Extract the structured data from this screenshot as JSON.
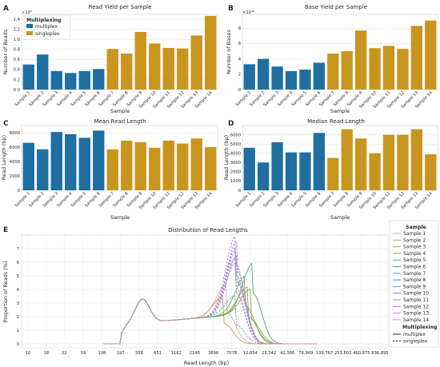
{
  "colors": {
    "multiplex": "#1f6fa3",
    "singleplex": "#c8961f"
  },
  "legend_multiplexing": {
    "title": "Multiplexing",
    "items": [
      "multiplex",
      "singleplex"
    ]
  },
  "chart_data": [
    {
      "panel": "A",
      "type": "bar",
      "title": "Read Yield per Sample",
      "xlabel": "Sample",
      "ylabel": "Number of Reads",
      "exponent": "×10⁷",
      "ylim": [
        0,
        1.5
      ],
      "yticks": [
        0.0,
        0.2,
        0.4,
        0.6,
        0.8,
        1.0,
        1.2,
        1.4
      ],
      "categories": [
        "Sample 1",
        "Sample 2",
        "Sample 3",
        "Sample 4",
        "Sample 5",
        "Sample 6",
        "Sample 7",
        "Sample 8",
        "Sample 9",
        "Sample 10",
        "Sample 11",
        "Sample 12",
        "Sample 13",
        "Sample 14"
      ],
      "values": [
        0.5,
        0.7,
        0.37,
        0.33,
        0.37,
        0.41,
        0.81,
        0.72,
        1.15,
        0.92,
        0.83,
        0.82,
        1.08,
        1.47
      ],
      "groups": [
        "multiplex",
        "multiplex",
        "multiplex",
        "multiplex",
        "multiplex",
        "multiplex",
        "singleplex",
        "singleplex",
        "singleplex",
        "singleplex",
        "singleplex",
        "singleplex",
        "singleplex",
        "singleplex"
      ],
      "legend": "top-left"
    },
    {
      "panel": "B",
      "type": "bar",
      "title": "Base Yield per Sample",
      "xlabel": "Sample",
      "ylabel": "Number of Bases",
      "exponent": "×10¹⁰",
      "ylim": [
        0,
        9.8
      ],
      "yticks": [
        0,
        2,
        4,
        6,
        8
      ],
      "categories": [
        "Sample 1",
        "Sample 2",
        "Sample 3",
        "Sample 4",
        "Sample 5",
        "Sample 6",
        "Sample 7",
        "Sample 8",
        "Sample 9",
        "Sample 10",
        "Sample 11",
        "Sample 12",
        "Sample 13",
        "Sample 14"
      ],
      "values": [
        3.3,
        4.0,
        3.0,
        2.4,
        2.6,
        3.5,
        4.7,
        5.0,
        7.7,
        5.4,
        5.7,
        5.3,
        8.3,
        9.0
      ],
      "groups": [
        "multiplex",
        "multiplex",
        "multiplex",
        "multiplex",
        "multiplex",
        "multiplex",
        "singleplex",
        "singleplex",
        "singleplex",
        "singleplex",
        "singleplex",
        "singleplex",
        "singleplex",
        "singleplex"
      ]
    },
    {
      "panel": "C",
      "type": "bar",
      "title": "Mean Read Length",
      "xlabel": "Sample",
      "ylabel": "Read Length (bp)",
      "ylim": [
        0,
        9000
      ],
      "yticks": [
        0,
        2000,
        4000,
        6000,
        8000
      ],
      "categories": [
        "Sample 1",
        "Sample 2",
        "Sample 3",
        "Sample 4",
        "Sample 5",
        "Sample 6",
        "Sample 7",
        "Sample 8",
        "Sample 9",
        "Sample 10",
        "Sample 11",
        "Sample 12",
        "Sample 13",
        "Sample 14"
      ],
      "values": [
        6600,
        5700,
        8100,
        7800,
        7300,
        8300,
        5700,
        6900,
        6700,
        5900,
        6900,
        6500,
        7200,
        6000
      ],
      "groups": [
        "multiplex",
        "multiplex",
        "multiplex",
        "multiplex",
        "multiplex",
        "multiplex",
        "singleplex",
        "singleplex",
        "singleplex",
        "singleplex",
        "singleplex",
        "singleplex",
        "singleplex",
        "singleplex"
      ]
    },
    {
      "panel": "D",
      "type": "bar",
      "title": "Median Read Length",
      "xlabel": "Sample",
      "ylabel": "Read Length (bp)",
      "ylim": [
        0,
        7000
      ],
      "yticks": [
        0,
        1000,
        2000,
        3000,
        4000,
        5000,
        6000
      ],
      "categories": [
        "Sample 1",
        "Sample 2",
        "Sample 3",
        "Sample 4",
        "Sample 5",
        "Sample 6",
        "Sample 7",
        "Sample 8",
        "Sample 9",
        "Sample 10",
        "Sample 11",
        "Sample 12",
        "Sample 13",
        "Sample 14"
      ],
      "values": [
        4600,
        3000,
        5200,
        4100,
        4100,
        6200,
        3500,
        6600,
        5600,
        4000,
        6000,
        6000,
        6600,
        3900
      ],
      "groups": [
        "multiplex",
        "multiplex",
        "multiplex",
        "multiplex",
        "multiplex",
        "multiplex",
        "singleplex",
        "singleplex",
        "singleplex",
        "singleplex",
        "singleplex",
        "singleplex",
        "singleplex",
        "singleplex"
      ]
    },
    {
      "panel": "E",
      "type": "line",
      "title": "Distribution of Read Lengths",
      "xlabel": "Read Length (bp)",
      "ylabel": "Proportion of Reads (%)",
      "xscale": "log",
      "xticks": [
        "10",
        "18",
        "32",
        "59",
        "108",
        "197",
        "358",
        "651",
        "1182",
        "2146",
        "3898",
        "7078",
        "12,854",
        "23,342",
        "42,386",
        "76,969",
        "139,767",
        "253,802",
        "460,875",
        "836,895"
      ],
      "ylim": [
        0,
        8
      ],
      "yticks": [
        0,
        1,
        2,
        3,
        4,
        5,
        6,
        7
      ],
      "legend_title": "Sample",
      "legend_style_title": "Multiplexing",
      "legend_styles": [
        {
          "name": "multiplex",
          "dash": "solid"
        },
        {
          "name": "singleplex",
          "dash": "dashed"
        }
      ],
      "series": [
        {
          "name": "Sample 1",
          "color": "#e8a4b5",
          "peak_x": 6000,
          "peak_y": 4.1,
          "dash": "solid"
        },
        {
          "name": "Sample 2",
          "color": "#cf9c52",
          "peak_x": 5500,
          "peak_y": 3.3,
          "dash": "solid"
        },
        {
          "name": "Sample 3",
          "color": "#a9a33c",
          "peak_x": 12000,
          "peak_y": 3.8,
          "dash": "solid"
        },
        {
          "name": "Sample 4",
          "color": "#8aa839",
          "peak_x": 13000,
          "peak_y": 3.6,
          "dash": "solid"
        },
        {
          "name": "Sample 5",
          "color": "#6aaf4a",
          "peak_x": 11000,
          "peak_y": 4.6,
          "dash": "solid"
        },
        {
          "name": "Sample 6",
          "color": "#4aa86e",
          "peak_x": 14000,
          "peak_y": 5.5,
          "dash": "solid"
        },
        {
          "name": "Sample 7",
          "color": "#47a79a",
          "peak_x": 8000,
          "peak_y": 3.2,
          "dash": "dashed"
        },
        {
          "name": "Sample 8",
          "color": "#4aa3b8",
          "peak_x": 8500,
          "peak_y": 6.2,
          "dash": "dashed"
        },
        {
          "name": "Sample 9",
          "color": "#5b9bd6",
          "peak_x": 8200,
          "peak_y": 6.8,
          "dash": "dashed"
        },
        {
          "name": "Sample 10",
          "color": "#7b8fe3",
          "peak_x": 8000,
          "peak_y": 5.6,
          "dash": "dashed"
        },
        {
          "name": "Sample 11",
          "color": "#9c85e0",
          "peak_x": 8300,
          "peak_y": 7.2,
          "dash": "dashed"
        },
        {
          "name": "Sample 12",
          "color": "#b77fd8",
          "peak_x": 8200,
          "peak_y": 6.5,
          "dash": "dashed"
        },
        {
          "name": "Sample 13",
          "color": "#cd7ac8",
          "peak_x": 8100,
          "peak_y": 7.6,
          "dash": "dashed"
        },
        {
          "name": "Sample 14",
          "color": "#e087b8",
          "peak_x": 8000,
          "peak_y": 6.0,
          "dash": "dashed"
        }
      ]
    }
  ]
}
